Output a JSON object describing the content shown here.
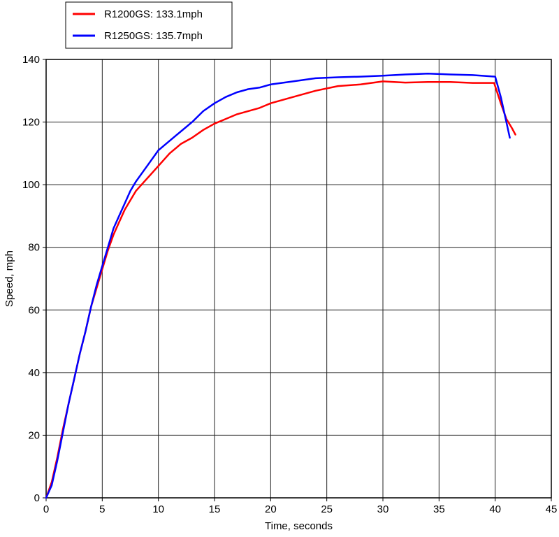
{
  "chart_data": {
    "type": "line",
    "title": "",
    "xlabel": "Time, seconds",
    "ylabel": "Speed, mph",
    "xlim": [
      0,
      45
    ],
    "ylim": [
      0,
      140
    ],
    "xticks": [
      0,
      5,
      10,
      15,
      20,
      25,
      30,
      35,
      40,
      45
    ],
    "yticks": [
      0,
      20,
      40,
      60,
      80,
      100,
      120,
      140
    ],
    "grid": true,
    "legend_position": "top-left",
    "series": [
      {
        "name": "R1200GS: 133.1mph",
        "color": "#ff0000",
        "x": [
          0,
          0.5,
          1,
          1.5,
          2,
          2.5,
          3,
          3.5,
          4,
          4.5,
          5,
          5.5,
          6,
          6.5,
          7,
          7.5,
          8,
          9,
          10,
          11,
          12,
          13,
          14,
          15,
          16,
          17,
          18,
          19,
          20,
          22,
          24,
          26,
          28,
          30,
          32,
          34,
          36,
          38,
          39.9,
          40.5,
          41,
          41.5,
          41.8
        ],
        "y": [
          0,
          5,
          13,
          22,
          30,
          38,
          46,
          53,
          61,
          67,
          73,
          79,
          84,
          88,
          92,
          95,
          98,
          102,
          106,
          110,
          113,
          115,
          117.5,
          119.5,
          121,
          122.5,
          123.5,
          124.5,
          126,
          128,
          130,
          131.5,
          132,
          133,
          132.6,
          132.8,
          132.8,
          132.5,
          132.5,
          126,
          121,
          118,
          116
        ]
      },
      {
        "name": "R1250GS: 135.7mph",
        "color": "#0000ff",
        "x": [
          0,
          0.5,
          1,
          1.5,
          2,
          2.5,
          3,
          3.5,
          4,
          4.5,
          5,
          5.5,
          6,
          6.5,
          7,
          7.5,
          8,
          9,
          10,
          11,
          12,
          13,
          14,
          15,
          16,
          17,
          18,
          19,
          20,
          22,
          24,
          26,
          28,
          30,
          32,
          34,
          36,
          38,
          40,
          40.5,
          41,
          41.3
        ],
        "y": [
          0,
          4,
          12,
          21,
          30,
          38,
          46,
          53,
          61,
          68,
          74,
          80,
          86,
          90,
          94,
          98,
          101,
          106,
          111,
          114,
          117,
          120,
          123.5,
          126,
          128,
          129.5,
          130.5,
          131,
          132,
          133,
          134,
          134.3,
          134.5,
          134.8,
          135.2,
          135.5,
          135.2,
          135,
          134.5,
          128,
          120,
          115
        ]
      }
    ]
  }
}
